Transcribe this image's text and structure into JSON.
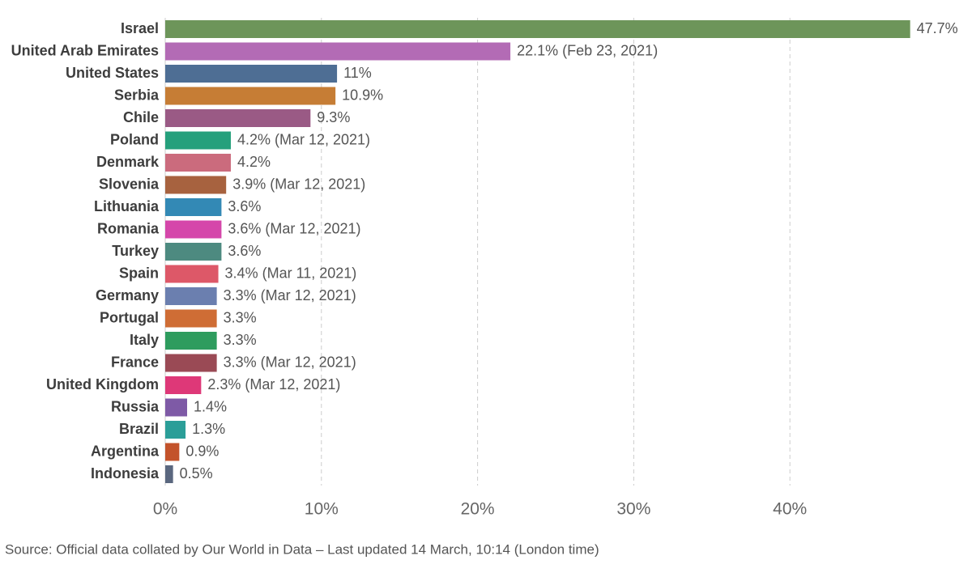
{
  "chart_data": {
    "type": "bar",
    "orientation": "horizontal",
    "categories": [
      "Israel",
      "United Arab Emirates",
      "United States",
      "Serbia",
      "Chile",
      "Poland",
      "Denmark",
      "Slovenia",
      "Lithuania",
      "Romania",
      "Turkey",
      "Spain",
      "Germany",
      "Portugal",
      "Italy",
      "France",
      "United Kingdom",
      "Russia",
      "Brazil",
      "Argentina",
      "Indonesia"
    ],
    "values": [
      47.7,
      22.1,
      11,
      10.9,
      9.3,
      4.2,
      4.2,
      3.9,
      3.6,
      3.6,
      3.6,
      3.4,
      3.3,
      3.3,
      3.3,
      3.3,
      2.3,
      1.4,
      1.3,
      0.9,
      0.5
    ],
    "value_labels": [
      "47.7%",
      "22.1% (Feb 23, 2021)",
      "11%",
      "10.9%",
      "9.3%",
      "4.2% (Mar 12, 2021)",
      "4.2%",
      "3.9% (Mar 12, 2021)",
      "3.6%",
      "3.6% (Mar 12, 2021)",
      "3.6%",
      "3.4% (Mar 11, 2021)",
      "3.3% (Mar 12, 2021)",
      "3.3%",
      "3.3%",
      "3.3% (Mar 12, 2021)",
      "2.3% (Mar 12, 2021)",
      "1.4%",
      "1.3%",
      "0.9%",
      "0.5%"
    ],
    "colors": [
      "#6d955a",
      "#b36bb5",
      "#4e6e94",
      "#c67d35",
      "#9a5a85",
      "#25a07c",
      "#cb6b7d",
      "#a7623f",
      "#3389b5",
      "#d547aa",
      "#4d8a80",
      "#dd5868",
      "#6b7faf",
      "#cf6d35",
      "#2e9c5e",
      "#9a4a55",
      "#de3878",
      "#7e5aa6",
      "#2b9e98",
      "#c3532b",
      "#5a677f"
    ],
    "xlim": [
      0,
      50
    ],
    "xticks": [
      {
        "value": 0,
        "label": "0%"
      },
      {
        "value": 10,
        "label": "10%"
      },
      {
        "value": 20,
        "label": "20%"
      },
      {
        "value": 30,
        "label": "30%"
      },
      {
        "value": 40,
        "label": "40%"
      }
    ],
    "grid": true,
    "source": "Source: Official data collated by Our World in Data – Last updated 14 March, 10:14 (London time)"
  }
}
